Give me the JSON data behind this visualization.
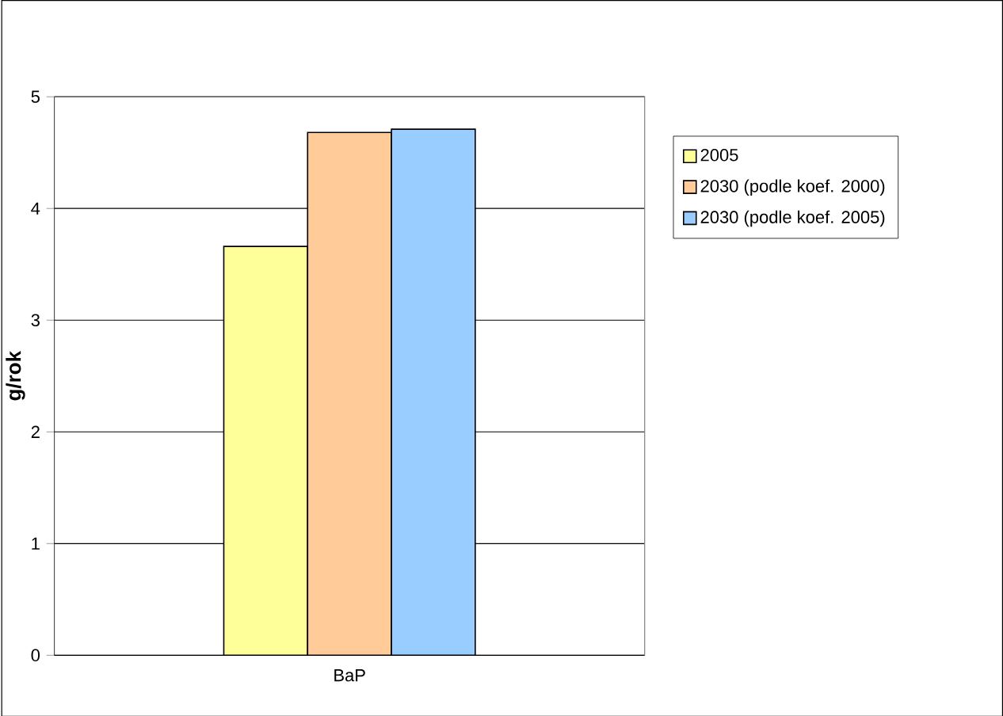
{
  "chart_data": {
    "type": "bar",
    "ylabel": "g/rok",
    "categories": [
      "BaP"
    ],
    "series": [
      {
        "name": "2005",
        "color": "#ffff99",
        "values": [
          3.66
        ]
      },
      {
        "name": "2030 (podle koef. 2000)",
        "color": "#ffcc99",
        "values": [
          4.68
        ]
      },
      {
        "name": "2030 (podle koef. 2005)",
        "color": "#99ccff",
        "values": [
          4.71
        ]
      }
    ],
    "ylim": [
      0,
      5
    ],
    "yticks": [
      0,
      1,
      2,
      3,
      4,
      5
    ],
    "grid": "y",
    "legend": "top right"
  }
}
